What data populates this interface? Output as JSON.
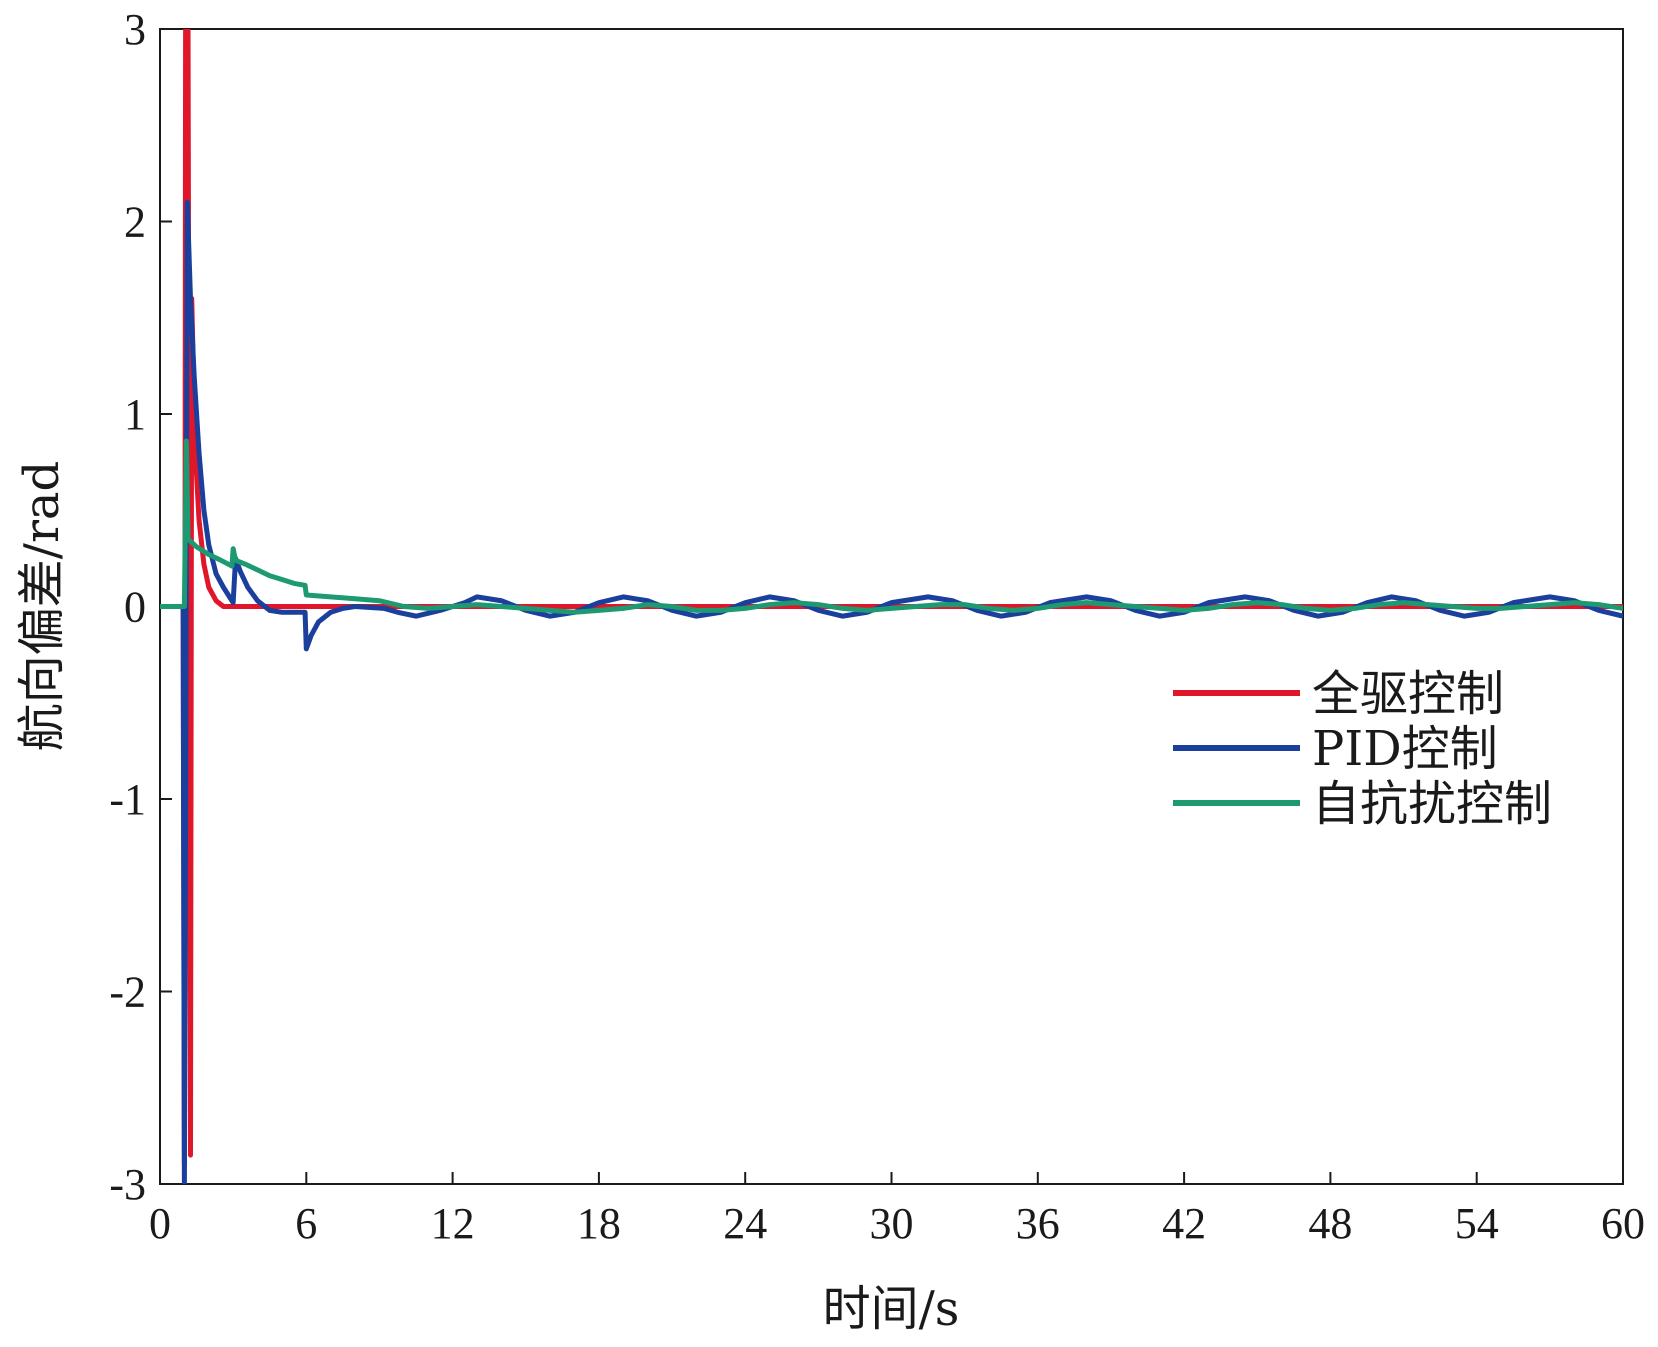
{
  "chart_data": {
    "type": "line",
    "xlabel": "时间/s",
    "ylabel": "航向偏差/rad",
    "xlim": [
      0,
      60
    ],
    "ylim": [
      -3,
      3
    ],
    "xticks": [
      0,
      6,
      12,
      18,
      24,
      30,
      36,
      42,
      48,
      54,
      60
    ],
    "yticks": [
      -3,
      -2,
      -1,
      0,
      1,
      2,
      3
    ],
    "xtick_labels": [
      "0",
      "6",
      "12",
      "18",
      "24",
      "30",
      "36",
      "42",
      "48",
      "54",
      "60"
    ],
    "ytick_labels": [
      "-3",
      "-2",
      "-1",
      "0",
      "1",
      "2",
      "3"
    ],
    "grid": false,
    "legend_position": "right",
    "series": [
      {
        "name": "全驱控制",
        "color": "#e0162b",
        "points": [
          [
            0,
            0
          ],
          [
            0.95,
            0
          ],
          [
            1.0,
            -2.9
          ],
          [
            1.05,
            3.0
          ],
          [
            1.15,
            3.0
          ],
          [
            1.25,
            -2.85
          ],
          [
            1.3,
            1.6
          ],
          [
            1.45,
            0.8
          ],
          [
            1.6,
            0.45
          ],
          [
            1.8,
            0.22
          ],
          [
            2.0,
            0.1
          ],
          [
            2.3,
            0.03
          ],
          [
            2.6,
            0.0
          ],
          [
            3.0,
            0.0
          ],
          [
            4,
            0
          ],
          [
            60,
            0
          ]
        ]
      },
      {
        "name": "PID控制",
        "color": "#1a3f9c",
        "points": [
          [
            0,
            0
          ],
          [
            0.95,
            0
          ],
          [
            1.0,
            -3.0
          ],
          [
            1.05,
            -1.0
          ],
          [
            1.12,
            2.1
          ],
          [
            1.25,
            1.6
          ],
          [
            1.4,
            1.2
          ],
          [
            1.6,
            0.8
          ],
          [
            1.8,
            0.5
          ],
          [
            2.0,
            0.32
          ],
          [
            2.3,
            0.17
          ],
          [
            2.6,
            0.1
          ],
          [
            2.85,
            0.05
          ],
          [
            3.0,
            0.02
          ],
          [
            3.1,
            0.25
          ],
          [
            3.3,
            0.18
          ],
          [
            3.6,
            0.1
          ],
          [
            4.0,
            0.03
          ],
          [
            4.5,
            -0.02
          ],
          [
            5.0,
            -0.03
          ],
          [
            5.95,
            -0.03
          ],
          [
            6.0,
            -0.22
          ],
          [
            6.2,
            -0.15
          ],
          [
            6.5,
            -0.08
          ],
          [
            7.0,
            -0.03
          ],
          [
            7.5,
            -0.01
          ],
          [
            8.0,
            0.0
          ],
          [
            9.2,
            -0.01
          ],
          [
            9.75,
            -0.03
          ],
          [
            10.5,
            -0.05
          ],
          [
            11.5,
            -0.02
          ],
          [
            12.5,
            0.02
          ],
          [
            13.0,
            0.05
          ],
          [
            14.0,
            0.03
          ],
          [
            15.0,
            -0.02
          ],
          [
            16.0,
            -0.05
          ],
          [
            17.0,
            -0.03
          ],
          [
            18.0,
            0.02
          ],
          [
            19.0,
            0.05
          ],
          [
            20.0,
            0.03
          ],
          [
            21.0,
            -0.02
          ],
          [
            22.0,
            -0.05
          ],
          [
            23.0,
            -0.03
          ],
          [
            24.0,
            0.02
          ],
          [
            25.0,
            0.05
          ],
          [
            26.0,
            0.03
          ],
          [
            27.0,
            -0.02
          ],
          [
            28.0,
            -0.05
          ],
          [
            29.0,
            -0.03
          ],
          [
            30.0,
            0.02
          ],
          [
            31.5,
            0.05
          ],
          [
            32.5,
            0.03
          ],
          [
            33.5,
            -0.02
          ],
          [
            34.5,
            -0.05
          ],
          [
            35.5,
            -0.03
          ],
          [
            36.5,
            0.02
          ],
          [
            38.0,
            0.05
          ],
          [
            39.0,
            0.03
          ],
          [
            40.0,
            -0.02
          ],
          [
            41.0,
            -0.05
          ],
          [
            42.0,
            -0.03
          ],
          [
            43.0,
            0.02
          ],
          [
            44.5,
            0.05
          ],
          [
            45.5,
            0.03
          ],
          [
            46.5,
            -0.02
          ],
          [
            47.5,
            -0.05
          ],
          [
            48.5,
            -0.03
          ],
          [
            49.5,
            0.02
          ],
          [
            50.5,
            0.05
          ],
          [
            51.5,
            0.03
          ],
          [
            52.5,
            -0.02
          ],
          [
            53.5,
            -0.05
          ],
          [
            54.5,
            -0.03
          ],
          [
            55.5,
            0.02
          ],
          [
            57.0,
            0.05
          ],
          [
            58.0,
            0.03
          ],
          [
            59.0,
            -0.02
          ],
          [
            60.0,
            -0.05
          ]
        ]
      },
      {
        "name": "自抗扰控制",
        "color": "#1e9a72",
        "points": [
          [
            0,
            0
          ],
          [
            1.0,
            0.0
          ],
          [
            1.08,
            0.86
          ],
          [
            1.15,
            0.35
          ],
          [
            1.5,
            0.31
          ],
          [
            2.0,
            0.27
          ],
          [
            2.5,
            0.24
          ],
          [
            2.95,
            0.21
          ],
          [
            3.0,
            0.3
          ],
          [
            3.1,
            0.24
          ],
          [
            3.5,
            0.22
          ],
          [
            4.0,
            0.19
          ],
          [
            4.5,
            0.16
          ],
          [
            5.0,
            0.14
          ],
          [
            5.5,
            0.12
          ],
          [
            5.95,
            0.11
          ],
          [
            6.0,
            0.06
          ],
          [
            7.0,
            0.05
          ],
          [
            8.0,
            0.04
          ],
          [
            9.0,
            0.03
          ],
          [
            10.0,
            0.0
          ],
          [
            11.0,
            -0.01
          ],
          [
            12.0,
            0.0
          ],
          [
            13.0,
            0.01
          ],
          [
            14.0,
            0.0
          ],
          [
            15.0,
            -0.01
          ],
          [
            16.0,
            -0.02
          ],
          [
            17.0,
            -0.03
          ],
          [
            18.0,
            -0.02
          ],
          [
            19.0,
            -0.01
          ],
          [
            20.0,
            0.01
          ],
          [
            21.0,
            0.0
          ],
          [
            22.0,
            -0.02
          ],
          [
            23.0,
            -0.02
          ],
          [
            24.0,
            -0.01
          ],
          [
            25.0,
            0.01
          ],
          [
            26.0,
            0.02
          ],
          [
            27.0,
            0.01
          ],
          [
            28.0,
            -0.01
          ],
          [
            29.0,
            -0.02
          ],
          [
            30.0,
            -0.01
          ],
          [
            31.0,
            0.0
          ],
          [
            32.0,
            0.01
          ],
          [
            33.0,
            0.01
          ],
          [
            34.0,
            -0.01
          ],
          [
            35.0,
            -0.02
          ],
          [
            36.0,
            -0.01
          ],
          [
            37.0,
            0.01
          ],
          [
            38.0,
            0.02
          ],
          [
            39.0,
            0.01
          ],
          [
            40.0,
            0.0
          ],
          [
            41.0,
            -0.01
          ],
          [
            42.0,
            -0.02
          ],
          [
            43.0,
            -0.01
          ],
          [
            44.0,
            0.01
          ],
          [
            45.0,
            0.02
          ],
          [
            46.0,
            0.01
          ],
          [
            47.0,
            -0.01
          ],
          [
            48.0,
            -0.02
          ],
          [
            49.0,
            -0.01
          ],
          [
            50.0,
            0.01
          ],
          [
            51.0,
            0.02
          ],
          [
            52.0,
            0.01
          ],
          [
            53.0,
            0.0
          ],
          [
            54.0,
            -0.01
          ],
          [
            55.0,
            -0.01
          ],
          [
            56.0,
            0.0
          ],
          [
            57.0,
            0.01
          ],
          [
            58.0,
            0.02
          ],
          [
            59.0,
            0.01
          ],
          [
            60.0,
            -0.01
          ]
        ]
      }
    ]
  }
}
